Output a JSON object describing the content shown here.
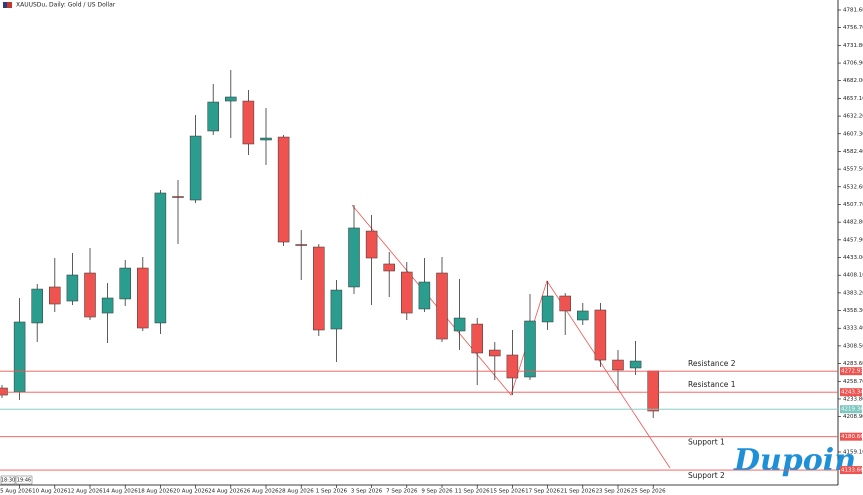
{
  "chart_data": {
    "type": "candlestick",
    "title": "XAUUSDu, Daily: Gold / US Dollar",
    "categories": [
      null,
      "5 Aug 2026",
      null,
      "10 Aug 2026",
      null,
      "12 Aug 2026",
      null,
      "14 Aug 2026",
      null,
      "18 Aug 2026",
      null,
      "20 Aug 2026",
      null,
      "24 Aug 2026",
      null,
      "26 Aug 2026",
      null,
      "28 Aug 2026",
      null,
      "1 Sep 2026",
      null,
      "3 Sep 2026",
      null,
      "7 Sep 2026",
      null,
      "9 Sep 2026",
      null,
      "11 Sep 2026",
      null,
      "15 Sep 2026",
      null,
      "17 Sep 2026",
      null,
      "21 Sep 2026",
      null,
      "23 Sep 2026",
      null,
      "25 Sep 2026"
    ],
    "open": [
      4249.2,
      4243.6,
      4340.8,
      4391.5,
      4371.7,
      4411.2,
      4354.8,
      4374.6,
      4418.2,
      4340.8,
      4518.9,
      4514.0,
      4611.2,
      4653.4,
      4653.4,
      4598.5,
      4602.7,
      4451.3,
      4447.8,
      4332.3,
      4391.5,
      4470.3,
      4423.9,
      4412.6,
      4360.5,
      4411.2,
      4329.5,
      4339.3,
      4302.7,
      4295.7,
      4264.7,
      4342.2,
      4378.8,
      4345.0,
      4359.1,
      4288.6,
      4277.4,
      4273.2
    ],
    "high": [
      4253.4,
      4376.0,
      4395.7,
      4432.3,
      4439.3,
      4446.4,
      4397.1,
      4429.5,
      4433.7,
      4528.1,
      4542.2,
      4633.7,
      4677.4,
      4697.1,
      4668.9,
      4643.6,
      4605.6,
      4471.7,
      4452.0,
      4401.3,
      4507.0,
      4492.9,
      4440.8,
      4426.7,
      4432.3,
      4433.7,
      4402.7,
      4347.8,
      4314.0,
      4330.9,
      4381.6,
      4399.9,
      4383.0,
      4368.9,
      4368.9,
      4302.7,
      4315.4,
      4273.2
    ],
    "low": [
      4235.1,
      4232.3,
      4314.0,
      4356.2,
      4366.1,
      4345.0,
      4312.6,
      4364.7,
      4329.5,
      4325.3,
      4452.0,
      4509.8,
      4605.6,
      4601.3,
      4577.4,
      4563.3,
      4449.2,
      4401.3,
      4322.4,
      4285.8,
      4381.6,
      4366.1,
      4377.4,
      4345.0,
      4356.2,
      4314.0,
      4302.7,
      4253.4,
      4260.5,
      4239.3,
      4260.5,
      4330.9,
      4323.9,
      4337.9,
      4278.8,
      4246.4,
      4267.5,
      4206.9
    ],
    "close": [
      4239.3,
      4342.2,
      4388.6,
      4367.5,
      4408.4,
      4349.2,
      4376.0,
      4418.2,
      4333.7,
      4523.9,
      4517.5,
      4604.1,
      4652.0,
      4659.1,
      4592.9,
      4601.3,
      4454.8,
      4449.9,
      4330.9,
      4387.2,
      4474.6,
      4432.3,
      4414.0,
      4354.8,
      4398.5,
      4318.2,
      4347.8,
      4298.5,
      4294.3,
      4263.3,
      4343.6,
      4378.8,
      4357.7,
      4357.7,
      4288.6,
      4274.6,
      4287.2,
      4216.8
    ],
    "up_color": "#2a9d8f",
    "down_color": "#ef5350",
    "flat_color": "#000000",
    "ylim": [
      4112.6,
      4795.7
    ],
    "yticks": [
      {
        "value": 4781.6,
        "label": "4781.60"
      },
      {
        "value": 4756.7,
        "label": "4756.70"
      },
      {
        "value": 4731.8,
        "label": "4731.80"
      },
      {
        "value": 4706.9,
        "label": "4706.90"
      },
      {
        "value": 4682.0,
        "label": "4682.00"
      },
      {
        "value": 4657.1,
        "label": "4657.10"
      },
      {
        "value": 4632.2,
        "label": "4632.20"
      },
      {
        "value": 4607.3,
        "label": "4607.30"
      },
      {
        "value": 4582.4,
        "label": "4582.40"
      },
      {
        "value": 4557.5,
        "label": "4557.50"
      },
      {
        "value": 4532.6,
        "label": "4532.60"
      },
      {
        "value": 4507.7,
        "label": "4507.70"
      },
      {
        "value": 4482.8,
        "label": "4482.80"
      },
      {
        "value": 4457.9,
        "label": "4457.90"
      },
      {
        "value": 4433.0,
        "label": "4433.00"
      },
      {
        "value": 4408.1,
        "label": "4408.10"
      },
      {
        "value": 4383.2,
        "label": "4383.20"
      },
      {
        "value": 4358.3,
        "label": "4358.30"
      },
      {
        "value": 4333.4,
        "label": "4333.40"
      },
      {
        "value": 4308.5,
        "label": "4308.50"
      },
      {
        "value": 4283.6,
        "label": "4283.60"
      },
      {
        "value": 4258.7,
        "label": "4258.70"
      },
      {
        "value": 4233.8,
        "label": "4233.80"
      },
      {
        "value": 4208.9,
        "label": "4208.90"
      },
      {
        "value": 4159.1,
        "label": "4159.10"
      }
    ],
    "levels": [
      {
        "name": "Resistance 2",
        "value": 4272.93,
        "color": "#ef5350"
      },
      {
        "name": "Resistance 1",
        "value": 4243.34,
        "color": "#ef5350"
      },
      {
        "value": 4219.36,
        "color": "#7cc7c0"
      },
      {
        "name": "Support 1",
        "value": 4180.66,
        "color": "#ef5350"
      },
      {
        "name": "Support 2",
        "value": 4133.66,
        "color": "#ef5350"
      }
    ],
    "time_labels": [
      "18:30",
      "19:46"
    ],
    "logo": "Dupoin"
  }
}
